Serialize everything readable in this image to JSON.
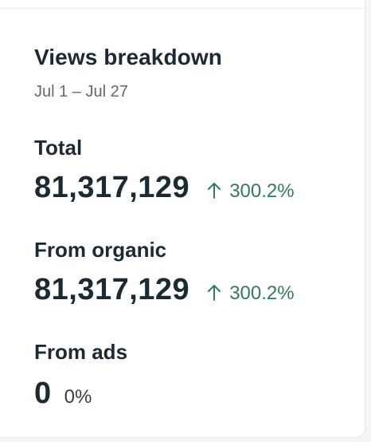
{
  "header": {
    "title": "Views breakdown",
    "date_range": "Jul 1 – Jul 27"
  },
  "metrics": [
    {
      "label": "Total",
      "value": "81,317,129",
      "change": "300.2%",
      "trend": "up-arrow-icon"
    },
    {
      "label": "From organic",
      "value": "81,317,129",
      "change": "300.2%",
      "trend": "up-arrow-icon"
    },
    {
      "label": "From ads",
      "value": "0",
      "change": "0%",
      "trend": "none"
    }
  ],
  "colors": {
    "text_primary": "#1c2b33",
    "text_secondary": "#65676b",
    "positive": "#2e7d55"
  }
}
